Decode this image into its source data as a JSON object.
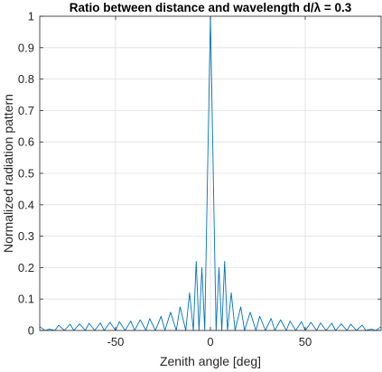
{
  "chart_data": {
    "type": "line",
    "title": "Ratio between distance and wavelength d/λ = 0.3",
    "xlabel": "Zenith angle [deg]",
    "ylabel": "Normalized radiation pattern",
    "xlim": [
      -90,
      90
    ],
    "ylim": [
      0,
      1
    ],
    "xticks": [
      -50,
      0,
      50
    ],
    "xtick_labels": [
      "-50",
      "0",
      "50"
    ],
    "yticks": [
      0,
      0.1,
      0.2,
      0.3,
      0.4,
      0.5,
      0.6,
      0.7,
      0.8,
      0.9,
      1
    ],
    "ytick_labels": [
      "0",
      "0.1",
      "0.2",
      "0.3",
      "0.4",
      "0.5",
      "0.6",
      "0.7",
      "0.8",
      "0.9",
      "1"
    ],
    "grid": true,
    "series": [
      {
        "color": "#0072bd",
        "x": [
          -90,
          -87.2,
          -85,
          -82,
          -80,
          -77,
          -74,
          -72,
          -69,
          -66,
          -64,
          -61,
          -58,
          -56,
          -53,
          -50,
          -48,
          -45,
          -42,
          -40,
          -37,
          -34,
          -32,
          -29,
          -26,
          -24,
          -21,
          -18,
          -16,
          -13,
          -11,
          -9,
          -7.5,
          -6,
          -4.5,
          -3,
          0,
          3,
          4.5,
          6,
          7.5,
          9,
          11,
          13,
          16,
          18,
          21,
          24,
          26,
          29,
          32,
          34,
          37,
          40,
          42,
          45,
          48,
          50,
          53,
          56,
          58,
          61,
          64,
          66,
          69,
          72,
          74,
          77,
          80,
          82,
          85,
          87.2,
          90
        ],
        "y": [
          0.012,
          0.0,
          0.004,
          0.0,
          0.017,
          0.0,
          0.02,
          0.0,
          0.021,
          0.0,
          0.023,
          0.0,
          0.024,
          0.0,
          0.026,
          0.0,
          0.028,
          0.0,
          0.03,
          0.0,
          0.034,
          0.0,
          0.038,
          0.0,
          0.045,
          0.0,
          0.058,
          0.0,
          0.075,
          0.0,
          0.12,
          0.0,
          0.22,
          0.0,
          0.2,
          0.0,
          1.0,
          0.0,
          0.2,
          0.0,
          0.22,
          0.0,
          0.12,
          0.0,
          0.075,
          0.0,
          0.058,
          0.0,
          0.045,
          0.0,
          0.038,
          0.0,
          0.034,
          0.0,
          0.03,
          0.0,
          0.028,
          0.0,
          0.026,
          0.0,
          0.024,
          0.0,
          0.023,
          0.0,
          0.021,
          0.0,
          0.02,
          0.0,
          0.017,
          0.0,
          0.004,
          0.0,
          0.012
        ]
      }
    ]
  }
}
